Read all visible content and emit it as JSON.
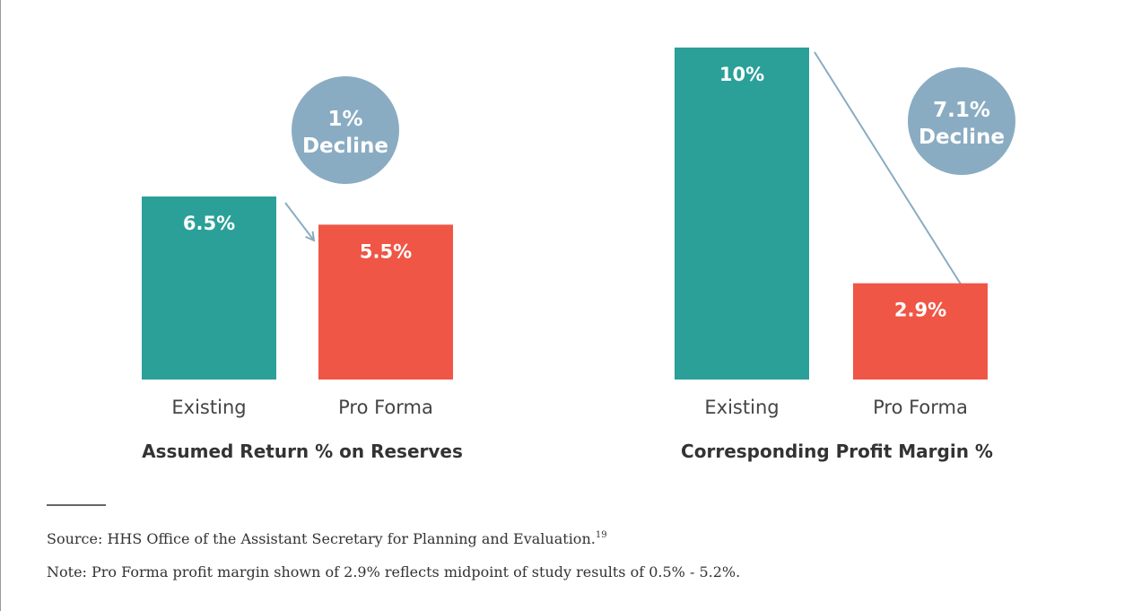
{
  "chart_data": [
    {
      "type": "bar",
      "title": "Assumed Return % on Reserves",
      "categories": [
        "Existing",
        "Pro Forma"
      ],
      "values": [
        6.5,
        5.5
      ],
      "value_labels": [
        "6.5%",
        "5.5%"
      ],
      "colors": [
        "#2aa098",
        "#ef5646"
      ],
      "annotation": [
        "1%",
        "Decline"
      ]
    },
    {
      "type": "bar",
      "title": "Corresponding Profit Margin %",
      "categories": [
        "Existing",
        "Pro Forma"
      ],
      "values": [
        10,
        2.9
      ],
      "value_labels": [
        "10%",
        "2.9%"
      ],
      "colors": [
        "#2aa098",
        "#ef5646"
      ],
      "annotation": [
        "7.1%",
        "Decline"
      ]
    }
  ],
  "source": "Source: HHS Office of the Assistant Secretary for Planning and Evaluation.",
  "source_footnote": "19",
  "note": "Note: Pro Forma profit margin shown of 2.9% reflects midpoint of study results of 0.5% - 5.2%."
}
